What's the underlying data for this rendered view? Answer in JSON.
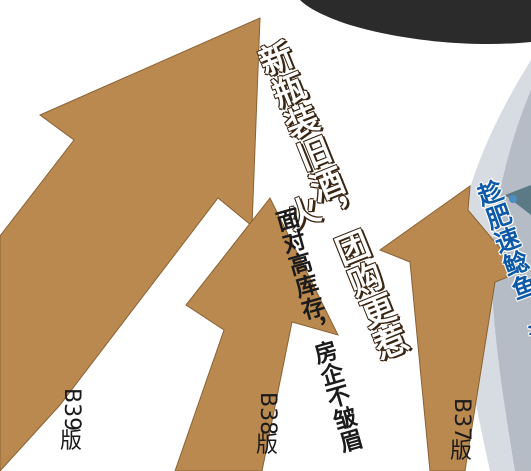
{
  "colors": {
    "arrow_fill": "#b98950",
    "arrow_stroke": "#8a6234",
    "background": "#ffffff",
    "fish_shadow": "#2b2b2b",
    "fish_gray": "#9aa3ad",
    "headline_blue": "#0e5aa8"
  },
  "arrows": [
    {
      "headline": "新瓶装旧酒，团购更惹火",
      "page": "B",
      "page_num": "39",
      "page_suffix": "版"
    },
    {
      "headline": "面对高库存，房企不皱眉",
      "page": "B",
      "page_num": "38",
      "page_suffix": "版"
    },
    {
      "headline": "趁肥速鲶鱼，沙丁鱼也行",
      "page": "B",
      "page_num": "37",
      "page_suffix": "版"
    }
  ]
}
